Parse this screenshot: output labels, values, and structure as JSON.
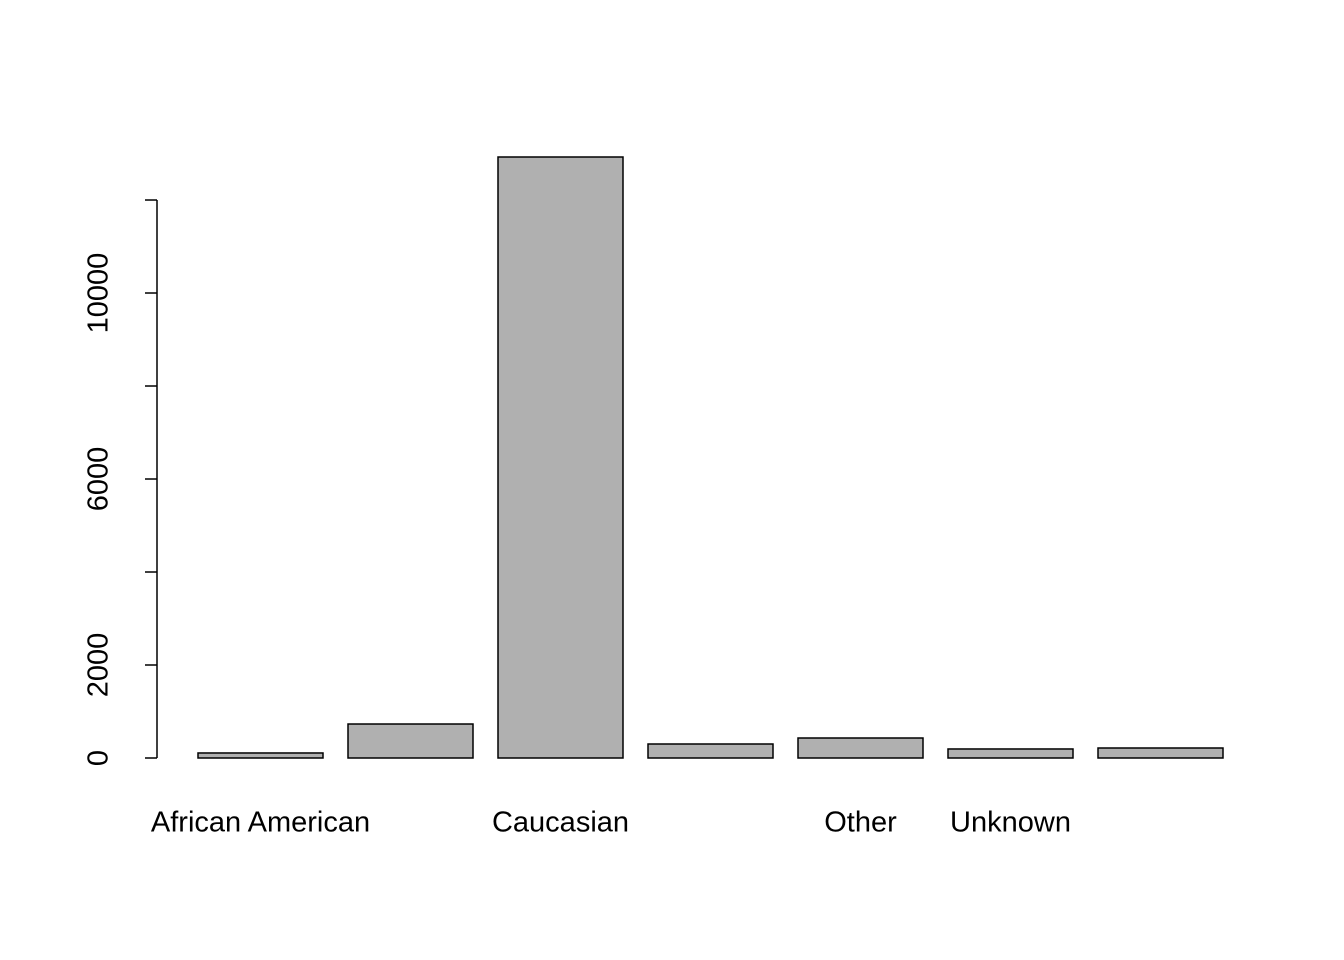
{
  "chart_data": {
    "type": "bar",
    "categories": [
      "African American",
      null,
      "Caucasian",
      null,
      "Other",
      "Unknown",
      null
    ],
    "values": [
      108,
      731,
      12925,
      301,
      430,
      194,
      215
    ],
    "color": "#b0b0b0",
    "ylim": [
      0,
      12925
    ],
    "yticks": [
      0,
      2000,
      {
        "value": 4000,
        "label": null
      },
      6000,
      {
        "value": 8000,
        "label": null
      },
      10000,
      {
        "value": 12000,
        "label": null
      }
    ]
  }
}
